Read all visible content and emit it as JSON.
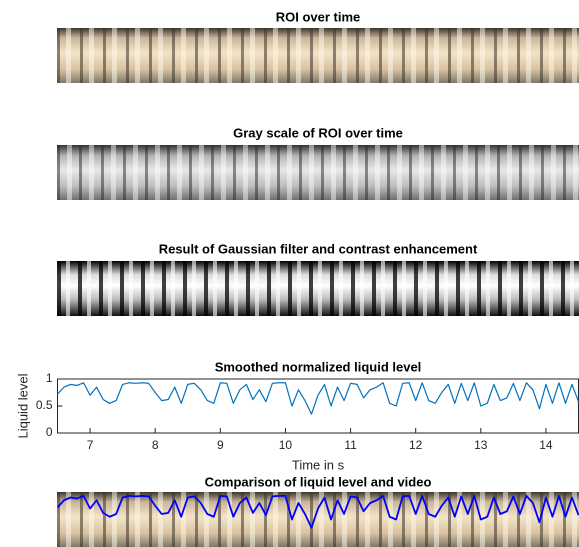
{
  "panels": [
    {
      "title": "ROI over time"
    },
    {
      "title": "Gray scale of ROI over time"
    },
    {
      "title": "Result of Gaussian filter and contrast enhancement"
    },
    {
      "title": "Comparison of liquid level and video"
    }
  ],
  "chart_data": {
    "type": "line",
    "title": "Smoothed normalized liquid level",
    "x_label": "Time in s",
    "y_label": "Liquid level",
    "xlim": [
      6.5,
      14.5
    ],
    "ylim": [
      0,
      1
    ],
    "xticks": [
      7,
      8,
      9,
      10,
      11,
      12,
      13,
      14
    ],
    "yticks": [
      0,
      0.5,
      1
    ],
    "overlay_color": "#0000ff",
    "x": [
      6.5,
      6.6,
      6.7,
      6.8,
      6.9,
      7.0,
      7.1,
      7.2,
      7.3,
      7.4,
      7.5,
      7.6,
      7.7,
      7.8,
      7.9,
      8.0,
      8.1,
      8.2,
      8.3,
      8.4,
      8.5,
      8.6,
      8.7,
      8.8,
      8.9,
      9.0,
      9.1,
      9.2,
      9.3,
      9.4,
      9.5,
      9.6,
      9.7,
      9.8,
      9.9,
      10.0,
      10.1,
      10.2,
      10.3,
      10.4,
      10.5,
      10.6,
      10.7,
      10.8,
      10.9,
      11.0,
      11.1,
      11.2,
      11.3,
      11.4,
      11.5,
      11.6,
      11.7,
      11.8,
      11.9,
      12.0,
      12.1,
      12.2,
      12.3,
      12.4,
      12.5,
      12.6,
      12.7,
      12.8,
      12.9,
      13.0,
      13.1,
      13.2,
      13.3,
      13.4,
      13.5,
      13.6,
      13.7,
      13.8,
      13.9,
      14.0,
      14.1,
      14.2,
      14.3,
      14.4,
      14.5
    ],
    "series": [
      {
        "color": "#0072bd",
        "values": [
          0.72,
          0.85,
          0.9,
          0.88,
          0.93,
          0.7,
          0.85,
          0.62,
          0.55,
          0.6,
          0.9,
          0.93,
          0.92,
          0.93,
          0.92,
          0.75,
          0.6,
          0.62,
          0.85,
          0.55,
          0.9,
          0.92,
          0.8,
          0.6,
          0.55,
          0.93,
          0.92,
          0.55,
          0.8,
          0.9,
          0.62,
          0.8,
          0.58,
          0.92,
          0.93,
          0.93,
          0.5,
          0.8,
          0.6,
          0.35,
          0.7,
          0.9,
          0.5,
          0.85,
          0.6,
          0.92,
          0.9,
          0.65,
          0.8,
          0.85,
          0.93,
          0.55,
          0.5,
          0.92,
          0.93,
          0.6,
          0.93,
          0.6,
          0.55,
          0.75,
          0.9,
          0.55,
          0.92,
          0.6,
          0.93,
          0.5,
          0.55,
          0.9,
          0.6,
          0.65,
          0.92,
          0.6,
          0.93,
          0.8,
          0.45,
          0.9,
          0.55,
          0.93,
          0.55,
          0.9,
          0.58
        ]
      }
    ]
  }
}
